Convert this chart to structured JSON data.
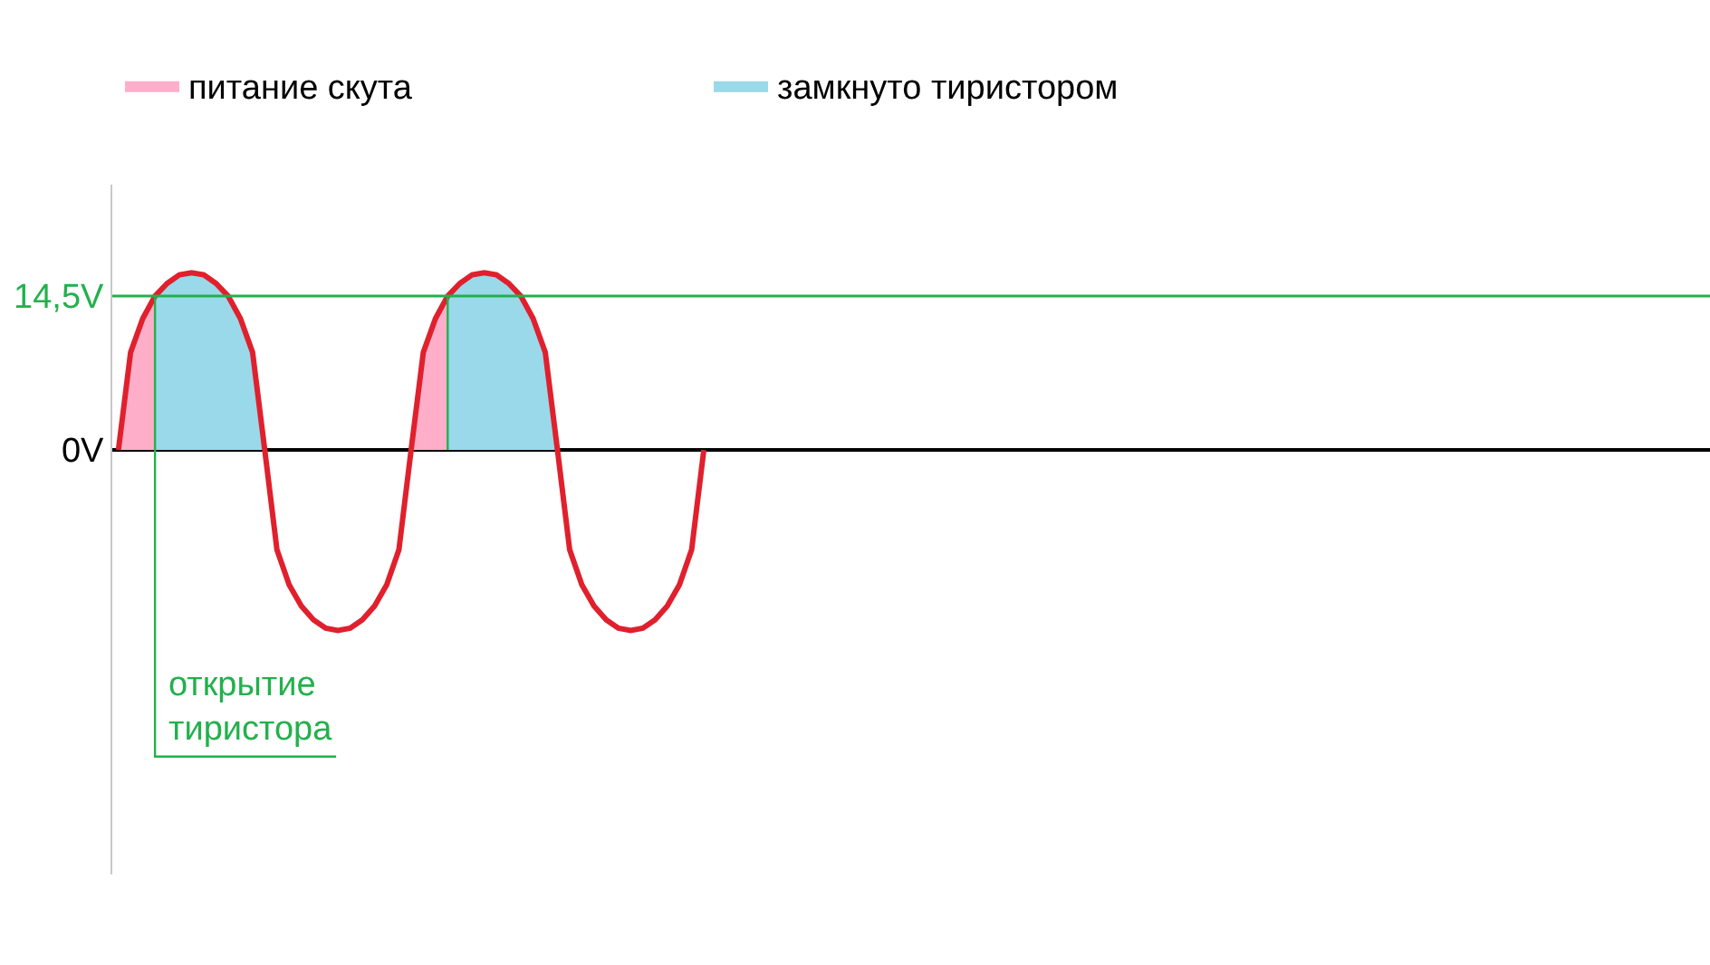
{
  "chart_data": {
    "type": "line",
    "categories": [
      null,
      null,
      null,
      null,
      null,
      null,
      null,
      null,
      null,
      null,
      null,
      null,
      null,
      null,
      null,
      null,
      null,
      null,
      null,
      null,
      null,
      null,
      null,
      null,
      null,
      null,
      null,
      null,
      null,
      null,
      null,
      null,
      null,
      null,
      null,
      null,
      null,
      null,
      null,
      null,
      null,
      null,
      null,
      null,
      null,
      null,
      null,
      null,
      null,
      null,
      null,
      null,
      null,
      null,
      null,
      null,
      null,
      null,
      null,
      null,
      null,
      null,
      null,
      null,
      null,
      null,
      null,
      null,
      null,
      null,
      null,
      null,
      null,
      null,
      null,
      null,
      null,
      null,
      null,
      null,
      null,
      null,
      null,
      null,
      null,
      null,
      null,
      null,
      null,
      null,
      null,
      null,
      null,
      null,
      null,
      null,
      null,
      null,
      null,
      null,
      null,
      null,
      null,
      null,
      null,
      null,
      null,
      null,
      null,
      null,
      null,
      null,
      null,
      null,
      null,
      null,
      null,
      null,
      null,
      null,
      null,
      null,
      null,
      null,
      null,
      null,
      null,
      null,
      null,
      null,
      null
    ],
    "ylim": [
      -40,
      25
    ],
    "yticks": [
      {
        "value": 0,
        "label": "0V"
      },
      {
        "value": 14.5,
        "label": "14,5V"
      }
    ],
    "tick_labels": "y",
    "legend": "top left",
    "ref_lines": [
      {
        "axis": "y",
        "value": 14.5,
        "color": "#22b14c"
      }
    ],
    "annotations": [
      "открытие\nтиристора"
    ],
    "series": [
      {
        "name": "питание скута",
        "type": "area",
        "color": "#ffaec9",
        "values": [
          0,
          9.2,
          12.4,
          14.5,
          null,
          null,
          null,
          null,
          null,
          null,
          null,
          null,
          null,
          null,
          null,
          null,
          null,
          null,
          null,
          null,
          null,
          null,
          null,
          null,
          0,
          9.2,
          12.4,
          14.5,
          null,
          null,
          null,
          null,
          null,
          null,
          null,
          null,
          null,
          null,
          null,
          null,
          null,
          null,
          null,
          null,
          null,
          null,
          null,
          null,
          null,
          null,
          null,
          null,
          null,
          null,
          null,
          null,
          null,
          null,
          null,
          null,
          null,
          null,
          null,
          null,
          null,
          null,
          null,
          null,
          null,
          null,
          null,
          null,
          null,
          null,
          null,
          null,
          null,
          null,
          null,
          null,
          null,
          null,
          null,
          null,
          null,
          null,
          null,
          null,
          null,
          null,
          null,
          null,
          null,
          null,
          null,
          null,
          null,
          null,
          null,
          null,
          null,
          null,
          null,
          null,
          null,
          null,
          null,
          null,
          null,
          null,
          null,
          null,
          null,
          null,
          null,
          null,
          null,
          null,
          null,
          null,
          null,
          null,
          null,
          null,
          null,
          null,
          null,
          null,
          null,
          null,
          null
        ]
      },
      {
        "name": "замкнуто тиристором",
        "type": "area",
        "color": "#99d9ea",
        "values": [
          null,
          null,
          null,
          14.5,
          15.7,
          16.5,
          16.7,
          16.5,
          15.7,
          14.5,
          12.4,
          9.2,
          0,
          null,
          null,
          null,
          null,
          null,
          null,
          null,
          null,
          null,
          null,
          null,
          null,
          null,
          null,
          14.5,
          15.7,
          16.5,
          16.7,
          16.5,
          15.7,
          14.5,
          12.4,
          9.2,
          0,
          null,
          null,
          null,
          null,
          null,
          null,
          null,
          null,
          null,
          null,
          null,
          null,
          null,
          null,
          null,
          null,
          null,
          null,
          null,
          null,
          null,
          null,
          null,
          null,
          null,
          null,
          null,
          null,
          null,
          null,
          null,
          null,
          null,
          null,
          null,
          null,
          null,
          null,
          null,
          null,
          null,
          null,
          null,
          null,
          null,
          null,
          null,
          null,
          null,
          null,
          null,
          null,
          null,
          null,
          null,
          null,
          null,
          null,
          null,
          null,
          null,
          null,
          null,
          null,
          null,
          null,
          null,
          null,
          null,
          null,
          null,
          null,
          null,
          null,
          null,
          null,
          null,
          null,
          null,
          null,
          null,
          null,
          null,
          null,
          null,
          null,
          null,
          null,
          null,
          null,
          null,
          null,
          null,
          null
        ]
      },
      {
        "color": "#e0202c",
        "values": [
          0,
          9.2,
          12.4,
          14.5,
          15.7,
          16.5,
          16.7,
          16.5,
          15.7,
          14.5,
          12.4,
          9.2,
          0,
          -9.4,
          -12.7,
          -14.7,
          -16.0,
          -16.8,
          -17.0,
          -16.8,
          -16.0,
          -14.7,
          -12.7,
          -9.4,
          0,
          9.2,
          12.4,
          14.5,
          15.7,
          16.5,
          16.7,
          16.5,
          15.7,
          14.5,
          12.4,
          9.2,
          0,
          -9.4,
          -12.7,
          -14.7,
          -16.0,
          -16.8,
          -17.0,
          -16.8,
          -16.0,
          -14.7,
          -12.7,
          -9.4,
          0,
          null,
          null,
          null,
          null,
          null,
          null,
          null,
          null,
          null,
          null,
          null,
          null,
          null,
          null,
          null,
          null,
          null,
          null,
          null,
          null,
          null,
          null,
          null,
          null,
          null,
          null,
          null,
          null,
          null,
          null,
          null,
          null,
          null,
          null,
          null,
          null,
          null,
          null,
          null,
          null,
          null,
          null,
          null,
          null,
          null,
          null,
          null,
          null,
          null,
          null,
          null,
          null,
          null,
          null,
          null,
          null,
          null,
          null,
          null,
          null,
          null,
          null,
          null,
          null,
          null,
          null,
          null,
          null,
          null,
          null,
          null,
          null,
          null,
          null,
          null,
          null,
          null,
          null,
          null,
          null,
          null,
          null
        ]
      }
    ]
  }
}
